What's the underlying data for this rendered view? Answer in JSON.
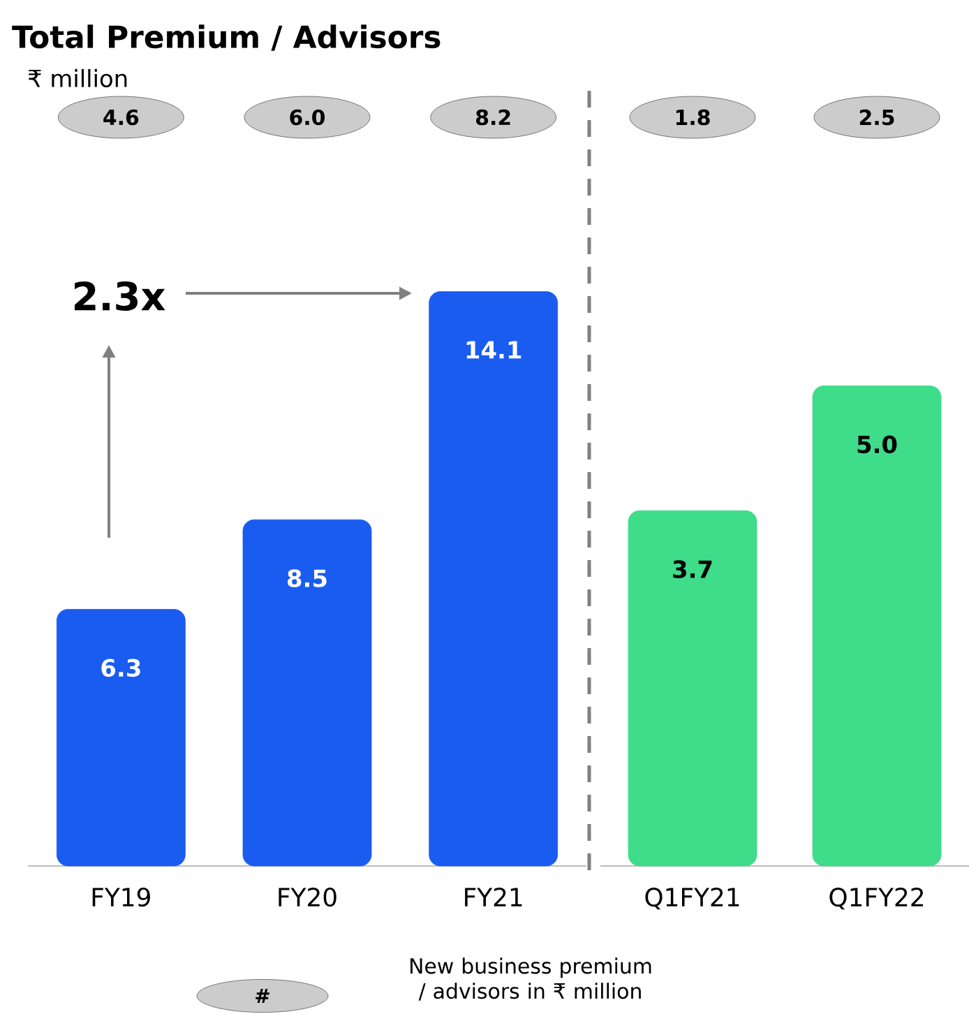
{
  "chart_data": [
    {
      "type": "bar",
      "title": "Total Premium / Advisors",
      "subtitle": "₹ million",
      "categories": [
        "FY19",
        "FY20",
        "FY21"
      ],
      "values": [
        6.3,
        8.5,
        14.1
      ],
      "value_labels": [
        "6.3",
        "8.5",
        "14.1"
      ],
      "color": "#1a5cf0",
      "annotations": [
        "4.6",
        "6.0",
        "8.2",
        "2.3x",
        "#",
        "New business premium / advisors in ₹ million"
      ]
    },
    {
      "type": "bar",
      "categories": [
        "Q1FY21",
        "Q1FY22"
      ],
      "values": [
        3.7,
        5.0
      ],
      "value_labels": [
        "3.7",
        "5.0"
      ],
      "color": "#3fdc8a",
      "annotations": [
        "1.8",
        "2.5"
      ]
    }
  ]
}
